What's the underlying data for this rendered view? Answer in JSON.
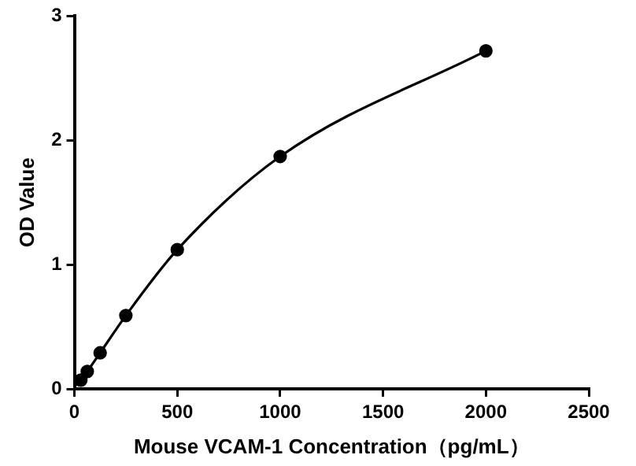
{
  "chart_data": {
    "type": "scatter",
    "xlabel": "Mouse VCAM-1 Concentration（pg/mL）",
    "ylabel": "OD Value",
    "xlim": [
      0,
      2500
    ],
    "xticks": [
      0,
      500,
      1000,
      1500,
      2000,
      2500
    ],
    "ylim": [
      0,
      3
    ],
    "yticks": [
      0,
      1,
      2,
      3
    ],
    "grid": false,
    "legend": false,
    "marker": "circle",
    "series": [
      {
        "type": "scatter",
        "color": "#000000",
        "x": [
          31.25,
          62.5,
          125,
          250,
          500,
          1000,
          2000
        ],
        "values": [
          0.07,
          0.14,
          0.29,
          0.59,
          1.12,
          1.87,
          2.72
        ]
      },
      {
        "type": "line",
        "color": "#000000",
        "marker": "none",
        "line_style": "solid",
        "x": [
          0,
          31.25,
          62.5,
          125,
          250,
          500,
          1000,
          2000
        ],
        "values": [
          0.02,
          0.07,
          0.14,
          0.29,
          0.59,
          1.12,
          1.87,
          2.72
        ]
      }
    ]
  }
}
